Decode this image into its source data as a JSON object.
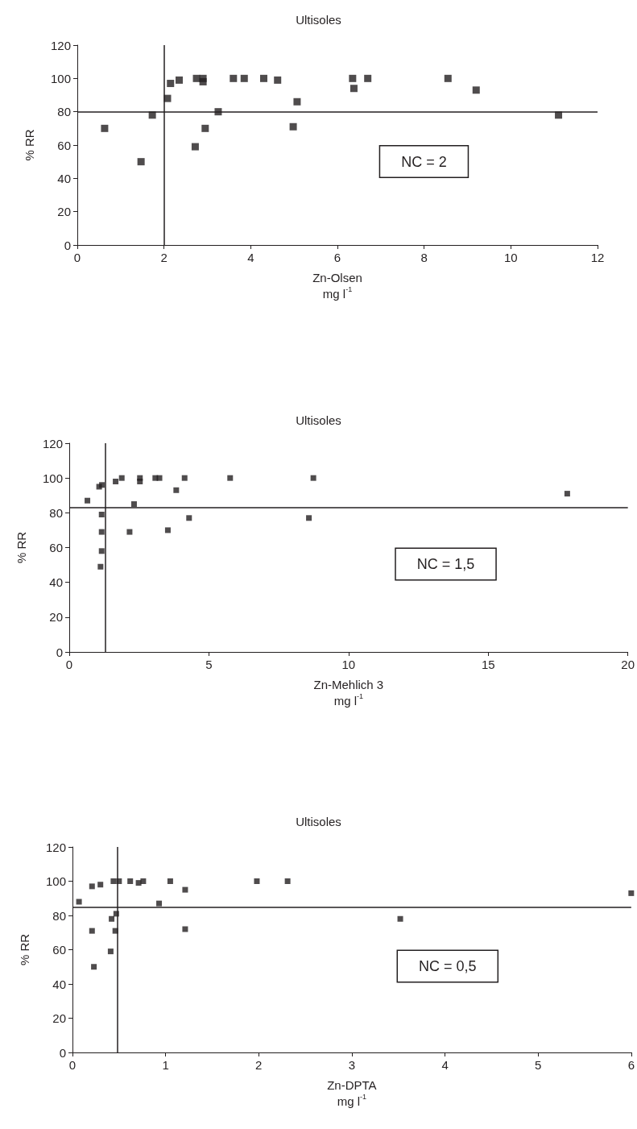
{
  "chart_data": [
    {
      "type": "scatter",
      "title": "Ultisoles",
      "xlabel": "Zn-Olsen\nmg l$^{-1}$",
      "ylabel": "% RR",
      "marker": "square",
      "grid": false,
      "series": [
        {
          "color": "#231f20",
          "x": [
            0.63,
            1.47,
            1.73,
            2.08,
            2.15,
            2.35,
            2.75,
            2.72,
            2.9,
            2.9,
            2.95,
            3.25,
            3.6,
            3.85,
            4.3,
            4.62,
            4.98,
            5.07,
            6.35,
            6.38,
            6.7,
            8.55,
            9.2,
            11.1
          ],
          "values": [
            70,
            50,
            78,
            88,
            97,
            99,
            100,
            59,
            100,
            98,
            70,
            80,
            100,
            100,
            100,
            99,
            71,
            86,
            100,
            94,
            100,
            100,
            93,
            78
          ]
        }
      ],
      "xlim": [
        0,
        12
      ],
      "xticks": [
        0,
        2,
        4,
        6,
        8,
        10,
        12
      ],
      "ylim": [
        0,
        120
      ],
      "yticks": [
        0,
        20,
        40,
        60,
        80,
        100,
        120
      ],
      "ref_lines": [
        {
          "axis": "x",
          "value": 2,
          "color": "#231f20"
        },
        {
          "axis": "y",
          "value": 80,
          "color": "#231f20"
        }
      ],
      "annotations": [
        "NC = 2"
      ]
    },
    {
      "type": "scatter",
      "title": "Ultisoles",
      "xlabel": "Zn-Mehlich 3\nmg l$^{-1}$",
      "ylabel": "% RR",
      "marker": "square",
      "grid": false,
      "series": [
        {
          "color": "#231f20",
          "x": [
            0.65,
            1.07,
            1.17,
            1.16,
            1.16,
            1.16,
            1.12,
            1.66,
            1.88,
            2.32,
            2.16,
            2.53,
            2.53,
            3.08,
            3.23,
            3.53,
            3.83,
            4.13,
            4.29,
            5.76,
            8.58,
            8.74,
            17.83
          ],
          "values": [
            87,
            95,
            96,
            79,
            69,
            58,
            49,
            98,
            100,
            85,
            69,
            100,
            98,
            100,
            100,
            70,
            93,
            100,
            77,
            100,
            77,
            100,
            91
          ]
        }
      ],
      "xlim": [
        0,
        20
      ],
      "xticks": [
        0,
        5,
        10,
        15,
        20
      ],
      "ylim": [
        0,
        120
      ],
      "yticks": [
        0,
        20,
        40,
        60,
        80,
        100,
        120
      ],
      "ref_lines": [
        {
          "axis": "x",
          "value": 1.3,
          "color": "#231f20"
        },
        {
          "axis": "y",
          "value": 83,
          "color": "#231f20"
        }
      ],
      "annotations": [
        "NC = 1,5"
      ]
    },
    {
      "type": "scatter",
      "title": "Ultisoles",
      "xlabel": "Zn-DPTA\nmg l$^{-1}$",
      "ylabel": "% RR",
      "marker": "square",
      "grid": false,
      "series": [
        {
          "color": "#231f20",
          "x": [
            0.07,
            0.21,
            0.3,
            0.44,
            0.5,
            0.62,
            0.71,
            0.76,
            0.93,
            1.05,
            1.21,
            1.21,
            1.98,
            2.31,
            3.52,
            6.0,
            0.42,
            0.47,
            0.21,
            0.46,
            0.41,
            0.23
          ],
          "values": [
            88,
            97,
            98,
            100,
            100,
            100,
            99,
            100,
            87,
            100,
            95,
            72,
            100,
            100,
            78,
            93,
            78,
            81,
            71,
            71,
            59,
            50
          ]
        }
      ],
      "xlim": [
        0,
        6
      ],
      "xticks": [
        0,
        1,
        2,
        3,
        4,
        5,
        6
      ],
      "ylim": [
        0,
        120
      ],
      "yticks": [
        0,
        20,
        40,
        60,
        80,
        100,
        120
      ],
      "ref_lines": [
        {
          "axis": "x",
          "value": 0.48,
          "color": "#231f20"
        },
        {
          "axis": "y",
          "value": 85,
          "color": "#231f20"
        }
      ],
      "annotations": [
        "NC = 0,5"
      ]
    }
  ]
}
